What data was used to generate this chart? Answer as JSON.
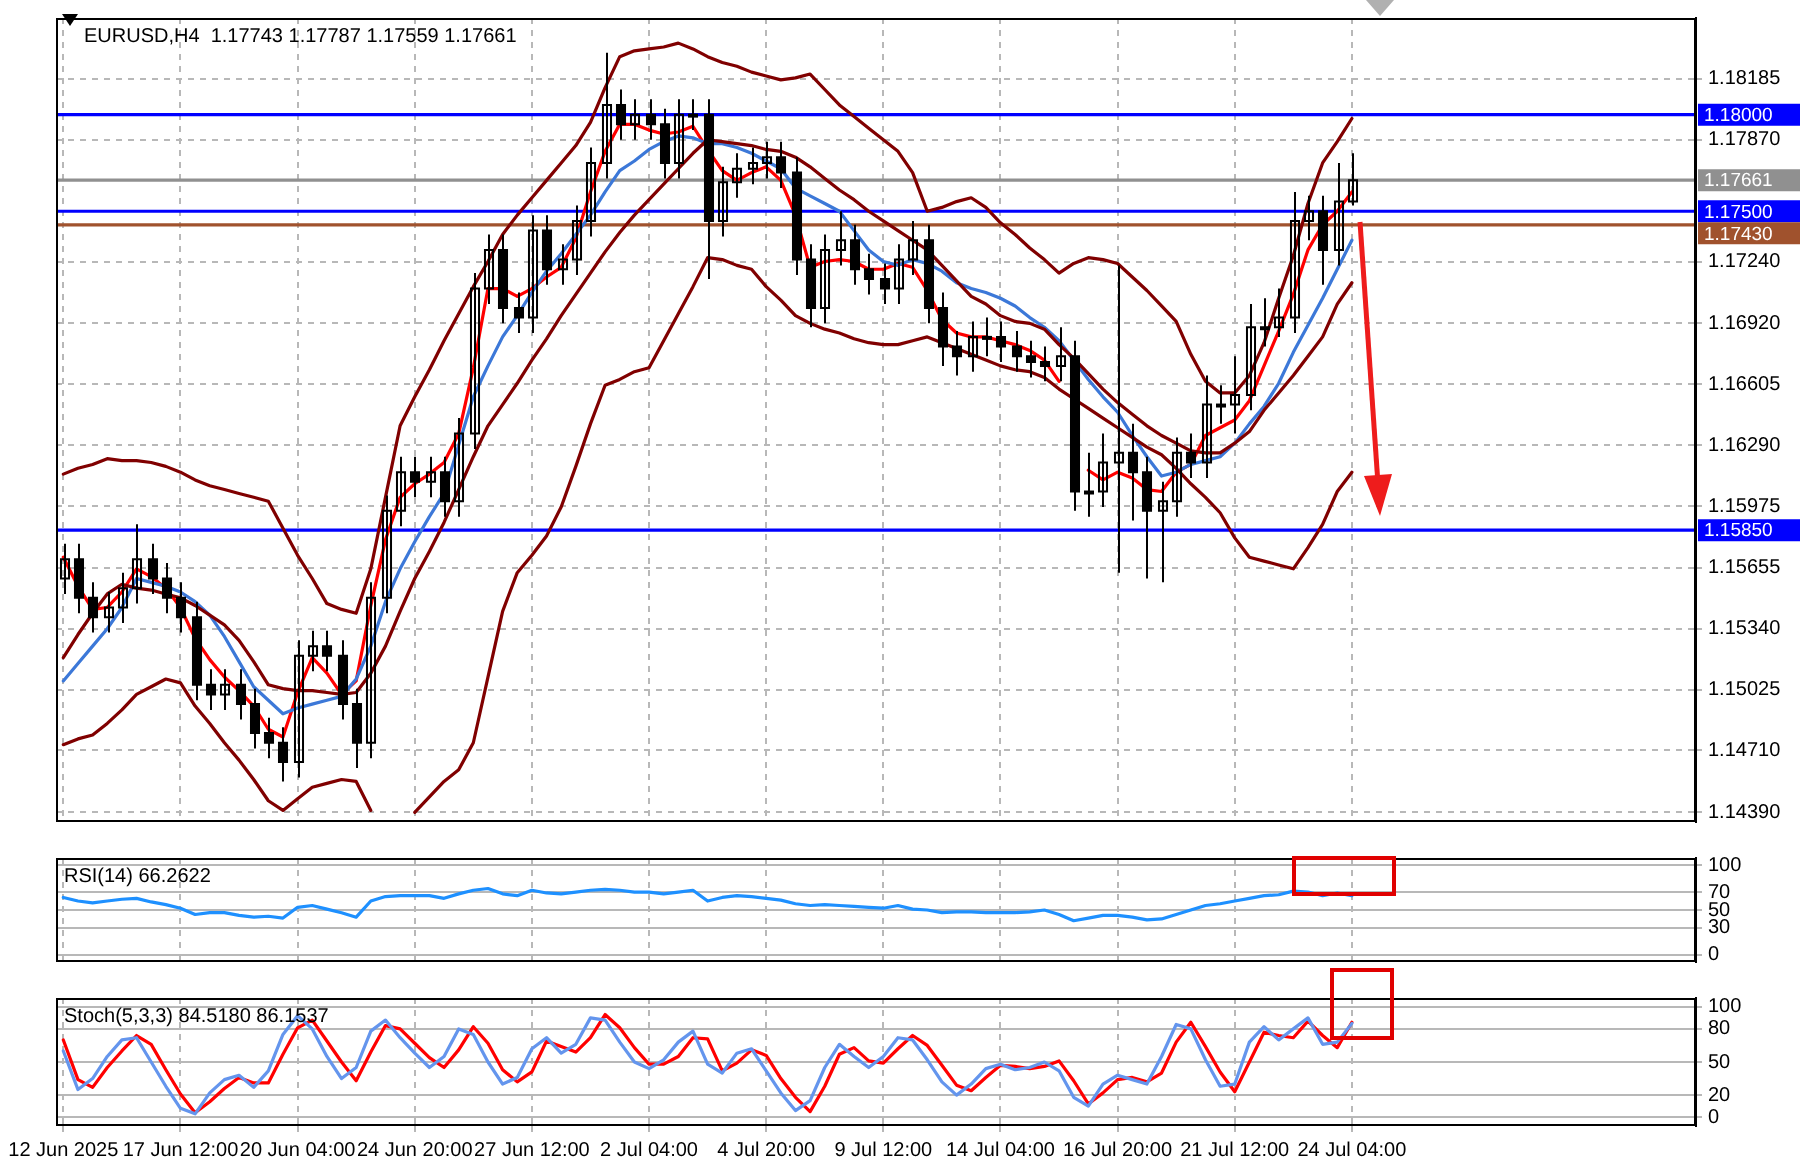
{
  "chart_data": [
    {
      "type": "candlestick",
      "title": "EURUSD,H4  1.17743 1.17787 1.17559 1.17661",
      "categories": [
        null,
        null,
        null,
        null,
        null,
        null,
        null,
        null,
        null,
        null,
        null,
        null,
        null,
        null,
        null,
        null,
        null,
        null,
        null,
        null,
        null,
        null,
        null,
        null,
        null,
        null,
        null,
        null,
        null,
        null,
        null,
        null,
        null,
        null,
        null,
        null,
        null,
        null,
        null,
        null,
        null,
        null,
        null,
        null,
        null,
        null,
        null,
        null,
        null,
        null,
        null,
        null,
        null,
        null,
        null,
        null,
        null,
        null,
        null,
        null,
        null,
        null,
        null,
        null,
        null,
        null,
        null,
        null,
        null,
        null,
        null,
        null,
        null,
        null,
        null,
        null,
        null,
        null,
        null,
        null,
        null,
        null,
        null,
        null,
        null,
        null,
        null,
        null,
        null,
        null,
        null,
        null,
        null,
        null,
        null,
        null,
        null,
        null,
        null,
        null,
        null,
        null,
        null,
        null,
        null,
        null,
        null,
        null,
        null,
        null,
        null,
        null
      ],
      "ohlc": [
        [
          1.156,
          1.1578,
          1.1552,
          1.157
        ],
        [
          1.157,
          1.1578,
          1.1542,
          1.155
        ],
        [
          1.155,
          1.1558,
          1.1532,
          1.154
        ],
        [
          1.154,
          1.1553,
          1.1532,
          1.1545
        ],
        [
          1.1545,
          1.1563,
          1.1537,
          1.1555
        ],
        [
          1.1555,
          1.1588,
          1.1547,
          1.157
        ],
        [
          1.157,
          1.1578,
          1.1552,
          1.156
        ],
        [
          1.156,
          1.1568,
          1.1542,
          1.155
        ],
        [
          1.155,
          1.1558,
          1.1532,
          1.154
        ],
        [
          1.154,
          1.1548,
          1.1497,
          1.1505
        ],
        [
          1.1505,
          1.1513,
          1.1492,
          1.15
        ],
        [
          1.15,
          1.1513,
          1.1492,
          1.1505
        ],
        [
          1.1505,
          1.1513,
          1.1487,
          1.1495
        ],
        [
          1.1495,
          1.1503,
          1.1472,
          1.148
        ],
        [
          1.148,
          1.1488,
          1.1467,
          1.1475
        ],
        [
          1.1475,
          1.1483,
          1.1455,
          1.1465
        ],
        [
          1.1465,
          1.1528,
          1.1457,
          1.152
        ],
        [
          1.152,
          1.1533,
          1.1512,
          1.1525
        ],
        [
          1.1525,
          1.1533,
          1.1512,
          1.152
        ],
        [
          1.152,
          1.1528,
          1.1487,
          1.1495
        ],
        [
          1.1495,
          1.1503,
          1.1462,
          1.1475
        ],
        [
          1.1475,
          1.1558,
          1.1467,
          1.155
        ],
        [
          1.155,
          1.1603,
          1.1542,
          1.1595
        ],
        [
          1.1595,
          1.1623,
          1.1587,
          1.1615
        ],
        [
          1.1615,
          1.1623,
          1.1602,
          1.161
        ],
        [
          1.161,
          1.1623,
          1.1602,
          1.1615
        ],
        [
          1.1615,
          1.1623,
          1.1592,
          1.16
        ],
        [
          1.16,
          1.1643,
          1.1592,
          1.1635
        ],
        [
          1.1635,
          1.1718,
          1.1627,
          1.171
        ],
        [
          1.171,
          1.1738,
          1.1702,
          1.173
        ],
        [
          1.173,
          1.1738,
          1.1692,
          1.17
        ],
        [
          1.17,
          1.1708,
          1.1687,
          1.1695
        ],
        [
          1.1695,
          1.1748,
          1.1687,
          1.174
        ],
        [
          1.174,
          1.1748,
          1.1712,
          1.172
        ],
        [
          1.172,
          1.1733,
          1.1712,
          1.1725
        ],
        [
          1.1725,
          1.1753,
          1.1717,
          1.1745
        ],
        [
          1.1745,
          1.1783,
          1.1737,
          1.1775
        ],
        [
          1.1775,
          1.1832,
          1.1767,
          1.1805
        ],
        [
          1.1805,
          1.1813,
          1.1787,
          1.1795
        ],
        [
          1.1795,
          1.1808,
          1.1787,
          1.18
        ],
        [
          1.18,
          1.1808,
          1.1787,
          1.1795
        ],
        [
          1.1795,
          1.1803,
          1.1767,
          1.1775
        ],
        [
          1.1775,
          1.1808,
          1.1767,
          1.18
        ],
        [
          1.18,
          1.1808,
          1.1792,
          1.18
        ],
        [
          1.18,
          1.1808,
          1.1715,
          1.1745
        ],
        [
          1.1745,
          1.1773,
          1.1737,
          1.1765
        ],
        [
          1.1765,
          1.178,
          1.1757,
          1.1772
        ],
        [
          1.1772,
          1.1783,
          1.1764,
          1.1775
        ],
        [
          1.1775,
          1.1786,
          1.1767,
          1.1778
        ],
        [
          1.1778,
          1.1786,
          1.1762,
          1.177
        ],
        [
          1.177,
          1.1778,
          1.1717,
          1.1725
        ],
        [
          1.1725,
          1.1733,
          1.169,
          1.17
        ],
        [
          1.17,
          1.1738,
          1.1692,
          1.173
        ],
        [
          1.173,
          1.175,
          1.1722,
          1.1735
        ],
        [
          1.1735,
          1.1743,
          1.1712,
          1.172
        ],
        [
          1.172,
          1.1728,
          1.1707,
          1.1715
        ],
        [
          1.1715,
          1.1723,
          1.1702,
          1.171
        ],
        [
          1.171,
          1.1733,
          1.1702,
          1.1725
        ],
        [
          1.1725,
          1.1745,
          1.1717,
          1.1735
        ],
        [
          1.1735,
          1.1743,
          1.1692,
          1.17
        ],
        [
          1.17,
          1.1708,
          1.167,
          1.168
        ],
        [
          1.168,
          1.1688,
          1.1665,
          1.1675
        ],
        [
          1.1675,
          1.1693,
          1.1667,
          1.1685
        ],
        [
          1.1685,
          1.1695,
          1.1675,
          1.1685
        ],
        [
          1.1685,
          1.1693,
          1.1672,
          1.168
        ],
        [
          1.168,
          1.1688,
          1.1667,
          1.1675
        ],
        [
          1.1675,
          1.1683,
          1.1664,
          1.1672
        ],
        [
          1.1672,
          1.168,
          1.1662,
          1.167
        ],
        [
          1.167,
          1.169,
          1.1662,
          1.1675
        ],
        [
          1.1675,
          1.1683,
          1.1595,
          1.1605
        ],
        [
          1.1605,
          1.1625,
          1.1592,
          1.1605
        ],
        [
          1.1605,
          1.1635,
          1.1597,
          1.162
        ],
        [
          1.162,
          1.1722,
          1.1563,
          1.1625
        ],
        [
          1.1625,
          1.164,
          1.159,
          1.1615
        ],
        [
          1.1615,
          1.1623,
          1.156,
          1.1595
        ],
        [
          1.1595,
          1.161,
          1.1558,
          1.16
        ],
        [
          1.16,
          1.1633,
          1.1592,
          1.1625
        ],
        [
          1.1625,
          1.1635,
          1.1612,
          1.162
        ],
        [
          1.162,
          1.1665,
          1.1612,
          1.165
        ],
        [
          1.165,
          1.166,
          1.164,
          1.165
        ],
        [
          1.165,
          1.1675,
          1.1635,
          1.1655
        ],
        [
          1.1655,
          1.1702,
          1.1647,
          1.169
        ],
        [
          1.169,
          1.1705,
          1.168,
          1.169
        ],
        [
          1.169,
          1.171,
          1.1685,
          1.1695
        ],
        [
          1.1695,
          1.176,
          1.1687,
          1.1745
        ],
        [
          1.1745,
          1.1758,
          1.1735,
          1.175
        ],
        [
          1.175,
          1.1758,
          1.1712,
          1.173
        ],
        [
          1.173,
          1.1775,
          1.1722,
          1.1755
        ],
        [
          1.1755,
          1.178,
          1.1753,
          1.17661
        ],
        null,
        null,
        null,
        null,
        null,
        null,
        null,
        null,
        null,
        null,
        null,
        null,
        null,
        null,
        null,
        null,
        null,
        null,
        null,
        null,
        null,
        null,
        null
      ],
      "series": [
        {
          "type": "line",
          "color": "#800000",
          "values": [
            1.1614,
            1.1617,
            1.1619,
            1.1622,
            1.1621,
            1.1621,
            1.162,
            1.1618,
            1.1615,
            1.1611,
            1.1608,
            1.1606,
            1.1604,
            1.1602,
            1.16,
            1.1586,
            1.1572,
            1.156,
            1.1547,
            1.1544,
            1.1542,
            1.1565,
            1.1602,
            1.1639,
            1.1654,
            1.1668,
            1.1683,
            1.1697,
            1.1711,
            1.1724,
            1.1738,
            1.1748,
            1.1757,
            1.1766,
            1.1775,
            1.1784,
            1.1796,
            1.1814,
            1.183,
            1.1833,
            1.1834,
            1.1835,
            1.1837,
            1.1834,
            1.183,
            1.1827,
            1.1825,
            1.1822,
            1.182,
            1.1818,
            1.1819,
            1.1821,
            1.1813,
            1.1805,
            1.1799,
            1.1793,
            1.1787,
            1.1781,
            1.177,
            1.175,
            1.1752,
            1.1755,
            1.1757,
            1.1752,
            1.1744,
            1.1738,
            1.1731,
            1.1725,
            1.1718,
            1.1723,
            1.1726,
            1.1725,
            1.1723,
            1.1716,
            1.1709,
            1.1701,
            1.1693,
            1.1676,
            1.1662,
            1.1656,
            1.1656,
            1.1665,
            1.1682,
            1.1705,
            1.1727,
            1.1754,
            1.1775,
            1.1786,
            1.1798,
            null,
            null,
            null,
            null,
            null,
            null,
            null,
            null,
            null,
            null,
            null,
            null,
            null,
            null,
            null,
            null,
            null,
            null,
            null,
            null,
            null,
            null,
            null
          ]
        },
        {
          "type": "line",
          "color": "#800000",
          "values": [
            1.1519,
            1.1531,
            1.1542,
            1.1552,
            1.1557,
            1.1555,
            1.1554,
            1.1552,
            1.155,
            1.1546,
            1.1541,
            1.1536,
            1.1528,
            1.1517,
            1.1505,
            1.1503,
            1.1502,
            1.1502,
            1.1501,
            1.15,
            1.1501,
            1.1511,
            1.1525,
            1.1543,
            1.156,
            1.1574,
            1.1589,
            1.1606,
            1.1623,
            1.1639,
            1.165,
            1.1661,
            1.1673,
            1.1684,
            1.1696,
            1.1707,
            1.1718,
            1.1729,
            1.1739,
            1.1748,
            1.1756,
            1.1764,
            1.1772,
            1.178,
            1.1787,
            1.1786,
            1.1785,
            1.1784,
            1.1782,
            1.1781,
            1.1778,
            1.1773,
            1.1767,
            1.1761,
            1.1756,
            1.175,
            1.1745,
            1.174,
            1.1735,
            1.173,
            1.1722,
            1.1714,
            1.1706,
            1.1702,
            1.1696,
            1.1693,
            1.1692,
            1.1689,
            1.1681,
            1.1674,
            1.1666,
            1.1658,
            1.1651,
            1.1645,
            1.1639,
            1.1634,
            1.163,
            1.1626,
            1.1625,
            1.1625,
            1.163,
            1.1636,
            1.1647,
            1.1656,
            1.1665,
            1.1675,
            1.1685,
            1.1702,
            1.1713,
            null,
            null,
            null,
            null,
            null,
            null,
            null,
            null,
            null,
            null,
            null,
            null,
            null,
            null,
            null,
            null,
            null,
            null,
            null,
            null,
            null,
            null,
            null
          ]
        },
        {
          "type": "line",
          "color": "#800000",
          "values": [
            1.1474,
            1.1477,
            1.1479,
            1.1485,
            1.1492,
            1.15,
            1.1504,
            1.1508,
            1.1506,
            1.1494,
            1.1485,
            1.1475,
            1.1466,
            1.1456,
            1.1445,
            1.144,
            1.1446,
            1.1452,
            1.1454,
            1.1456,
            1.1455,
            1.144,
            null,
            null,
            1.1439,
            1.1447,
            1.1455,
            1.1461,
            1.1475,
            1.1509,
            1.1543,
            1.1563,
            1.1572,
            1.1582,
            1.1597,
            1.1618,
            1.164,
            1.166,
            1.1663,
            1.1667,
            1.1669,
            1.1683,
            1.1697,
            1.1711,
            1.1726,
            1.1725,
            1.1722,
            1.172,
            1.1711,
            1.1704,
            1.1696,
            1.1692,
            1.1689,
            1.1687,
            1.1684,
            1.1682,
            1.1681,
            1.1681,
            1.1683,
            1.1685,
            1.1682,
            1.1679,
            1.1676,
            1.1673,
            1.167,
            1.1668,
            1.1667,
            1.1664,
            1.1658,
            1.1653,
            1.1648,
            1.1643,
            1.1638,
            1.1633,
            1.1628,
            1.1624,
            1.1617,
            1.1609,
            1.1602,
            1.1594,
            1.1581,
            1.1571,
            1.1569,
            1.1567,
            1.1565,
            1.1576,
            1.1588,
            1.1605,
            1.1615,
            null,
            null,
            null,
            null,
            null,
            null,
            null,
            null,
            null,
            null,
            null,
            null,
            null,
            null,
            null,
            null,
            null,
            null,
            null,
            null,
            null,
            null,
            null
          ]
        },
        {
          "type": "line",
          "color": "#3c78d8",
          "values": [
            1.1507,
            1.1516,
            1.1525,
            1.1534,
            1.1545,
            1.156,
            1.1558,
            1.1556,
            1.1553,
            1.1548,
            1.1541,
            1.153,
            1.1517,
            1.1504,
            1.1497,
            1.149,
            1.1493,
            1.1495,
            1.1497,
            1.1499,
            1.1508,
            1.1525,
            1.1548,
            1.1565,
            1.1579,
            1.1592,
            1.1604,
            1.1629,
            1.1654,
            1.167,
            1.1685,
            1.1696,
            1.1708,
            1.1719,
            1.1728,
            1.1738,
            1.1748,
            1.176,
            1.1771,
            1.1776,
            1.1782,
            1.1786,
            1.1789,
            1.1788,
            1.1785,
            1.1785,
            1.1783,
            1.178,
            1.1776,
            1.1772,
            1.1762,
            1.1758,
            1.1754,
            1.175,
            1.174,
            1.173,
            1.1724,
            1.1722,
            1.1725,
            1.1723,
            1.1719,
            1.1713,
            1.171,
            1.1708,
            1.1705,
            1.1701,
            1.1695,
            1.169,
            1.1683,
            1.1673,
            1.1663,
            1.1654,
            1.1646,
            1.1634,
            1.1623,
            1.1613,
            1.1615,
            1.1619,
            1.1621,
            1.1623,
            1.163,
            1.164,
            1.1649,
            1.1661,
            1.1677,
            1.1691,
            1.1705,
            1.172,
            1.1735,
            null,
            null,
            null,
            null,
            null,
            null,
            null,
            null,
            null,
            null,
            null,
            null,
            null,
            null,
            null,
            null,
            null,
            null,
            null,
            null,
            null,
            null,
            null
          ]
        },
        {
          "type": "line",
          "color": "#ff0000",
          "values": [
            1.1571,
            1.1556,
            1.1544,
            1.1545,
            1.1553,
            1.1565,
            1.1561,
            1.1555,
            1.1545,
            1.1529,
            1.1518,
            1.1509,
            1.1502,
            1.1494,
            1.1482,
            1.1478,
            1.1501,
            1.1519,
            1.1511,
            1.15,
            1.1507,
            1.1546,
            1.158,
            1.1602,
            1.1609,
            1.1614,
            1.162,
            1.1635,
            1.1669,
            1.171,
            1.171,
            1.1706,
            1.171,
            1.1716,
            1.1721,
            1.1736,
            1.176,
            1.1781,
            1.1795,
            1.1795,
            1.1792,
            1.179,
            1.1791,
            1.1794,
            1.1782,
            1.1771,
            1.1766,
            1.177,
            1.1773,
            1.1766,
            1.1748,
            1.1721,
            1.1724,
            1.1725,
            1.1724,
            1.172,
            1.172,
            1.1723,
            1.1721,
            1.1709,
            1.1694,
            1.1687,
            1.1685,
            1.1685,
            1.1683,
            1.1681,
            1.1678,
            1.1673,
            1.1662,
            null,
            1.1616,
            1.1611,
            1.1615,
            1.1612,
            1.1606,
            1.1605,
            1.1615,
            1.1619,
            1.1634,
            1.1638,
            1.1642,
            1.1652,
            1.167,
            1.1688,
            1.1707,
            1.173,
            1.1743,
            1.175,
            1.176,
            null,
            null,
            null,
            null,
            null,
            null,
            null,
            null,
            null,
            null,
            null,
            null,
            null,
            null,
            null,
            null,
            null,
            null,
            null,
            null,
            null,
            null,
            null
          ]
        }
      ],
      "ylim": [
        1.1434,
        1.185
      ],
      "yticks": [
        1.18185,
        {
          "value": 1.1787,
          "label": "1.17870"
        },
        {
          "value": 1.1724,
          "label": "1.17240"
        },
        {
          "value": 1.1692,
          "label": "1.16920"
        },
        1.16605,
        {
          "value": 1.1629,
          "label": "1.16290"
        },
        1.15975,
        1.15655,
        {
          "value": 1.1534,
          "label": "1.15340"
        },
        1.15025,
        {
          "value": 1.1471,
          "label": "1.14710"
        },
        {
          "value": 1.1439,
          "label": "1.14390"
        }
      ],
      "ref_lines": [
        {
          "axis": "y",
          "value": 1.18,
          "label": "1.18000",
          "color": "#0000ff"
        },
        {
          "axis": "y",
          "value": 1.17661,
          "label": "1.17661",
          "color": "#909090"
        },
        {
          "axis": "y",
          "value": 1.175,
          "label": "1.17500",
          "color": "#0000ff"
        },
        {
          "axis": "y",
          "value": 1.1743,
          "label": "1.17430",
          "color": "#a0522d"
        },
        {
          "axis": "y",
          "value": 1.1585,
          "label": "1.15850",
          "color": "#0000ff"
        }
      ],
      "grid": true,
      "tick_labels": "y"
    },
    {
      "type": "line",
      "title": "RSI(14) 66.2622",
      "categories": [
        null,
        null,
        null,
        null,
        null,
        null,
        null,
        null,
        null,
        null,
        null,
        null,
        null,
        null,
        null,
        null,
        null,
        null,
        null,
        null,
        null,
        null,
        null,
        null,
        null,
        null,
        null,
        null,
        null,
        null,
        null,
        null,
        null,
        null,
        null,
        null,
        null,
        null,
        null,
        null,
        null,
        null,
        null,
        null,
        null,
        null,
        null,
        null,
        null,
        null,
        null,
        null,
        null,
        null,
        null,
        null,
        null,
        null,
        null,
        null,
        null,
        null,
        null,
        null,
        null,
        null,
        null,
        null,
        null,
        null,
        null,
        null,
        null,
        null,
        null,
        null,
        null,
        null,
        null,
        null,
        null,
        null,
        null,
        null,
        null,
        null,
        null,
        null,
        null,
        null,
        null,
        null,
        null,
        null,
        null,
        null,
        null,
        null,
        null,
        null,
        null,
        null,
        null,
        null,
        null,
        null,
        null,
        null,
        null,
        null,
        null,
        null
      ],
      "color": "#1e90ff",
      "values": [
        64,
        60,
        58,
        60,
        62,
        63,
        59,
        56,
        52,
        45,
        47,
        47,
        44,
        42,
        43,
        41,
        53,
        55,
        51,
        47,
        42,
        60,
        65,
        66,
        66,
        66,
        63,
        68,
        72,
        74,
        68,
        66,
        72,
        69,
        68,
        70,
        72,
        73,
        72,
        70,
        70,
        68,
        70,
        72,
        60,
        64,
        66,
        65,
        63,
        61,
        57,
        55,
        56,
        55,
        54,
        53,
        52,
        55,
        51,
        50,
        47,
        48,
        48,
        47,
        47,
        47,
        48,
        50,
        45,
        38,
        41,
        44,
        44,
        42,
        39,
        40,
        45,
        50,
        55,
        57,
        60,
        63,
        66,
        67,
        71,
        70,
        66,
        69,
        66,
        null,
        null,
        null,
        null,
        null,
        null,
        null,
        null,
        null,
        null,
        null,
        null,
        null,
        null,
        null,
        null,
        null,
        null,
        null,
        null,
        null,
        null,
        null
      ],
      "ylim": [
        -8,
        108
      ],
      "yticks": [
        0,
        30,
        50,
        70,
        100
      ],
      "grid": true,
      "tick_labels": "y"
    },
    {
      "type": "line",
      "title": "Stoch(5,3,3) 84.5180 86.1537",
      "categories": [
        "12 Jun 2025",
        null,
        null,
        null,
        null,
        null,
        null,
        null,
        "17 Jun 12:00",
        null,
        null,
        null,
        null,
        null,
        null,
        null,
        "20 Jun 04:00",
        null,
        null,
        null,
        null,
        null,
        null,
        null,
        "24 Jun 20:00",
        null,
        null,
        null,
        null,
        null,
        null,
        null,
        "27 Jun 12:00",
        null,
        null,
        null,
        null,
        null,
        null,
        null,
        "2 Jul 04:00",
        null,
        null,
        null,
        null,
        null,
        null,
        null,
        "4 Jul 20:00",
        null,
        null,
        null,
        null,
        null,
        null,
        null,
        "9 Jul 12:00",
        null,
        null,
        null,
        null,
        null,
        null,
        null,
        "14 Jul 04:00",
        null,
        null,
        null,
        null,
        null,
        null,
        null,
        "16 Jul 20:00",
        null,
        null,
        null,
        null,
        null,
        null,
        null,
        "21 Jul 12:00",
        null,
        null,
        null,
        null,
        null,
        null,
        null,
        "24 Jul 04:00",
        null,
        null,
        null,
        null,
        null,
        null,
        null,
        null,
        null,
        null,
        null,
        null,
        null,
        null,
        null,
        null,
        null,
        null,
        null,
        null,
        null,
        null,
        null
      ],
      "series": [
        {
          "color": "#6495ed",
          "values": [
            60,
            25,
            35,
            55,
            70,
            72,
            50,
            28,
            8,
            3,
            22,
            34,
            38,
            27,
            42,
            75,
            92,
            80,
            55,
            35,
            45,
            78,
            88,
            72,
            58,
            45,
            55,
            80,
            75,
            50,
            30,
            36,
            62,
            72,
            58,
            66,
            90,
            88,
            68,
            50,
            44,
            52,
            68,
            78,
            48,
            40,
            58,
            62,
            42,
            22,
            6,
            15,
            45,
            66,
            55,
            45,
            55,
            72,
            70,
            52,
            32,
            20,
            30,
            44,
            48,
            43,
            45,
            50,
            42,
            18,
            10,
            30,
            38,
            34,
            30,
            55,
            84,
            80,
            52,
            28,
            30,
            68,
            82,
            70,
            80,
            90,
            66,
            68,
            85,
            null,
            null,
            null,
            null,
            null,
            null,
            null,
            null,
            null,
            null,
            null,
            null,
            null,
            null,
            null,
            null,
            null,
            null,
            null,
            null,
            null,
            null,
            null
          ]
        },
        {
          "color": "#ff0000",
          "values": [
            70,
            34,
            27,
            45,
            60,
            74,
            66,
            43,
            21,
            4,
            14,
            26,
            36,
            31,
            31,
            57,
            81,
            88,
            69,
            50,
            33,
            59,
            83,
            80,
            67,
            54,
            45,
            61,
            82,
            67,
            43,
            32,
            41,
            69,
            64,
            59,
            72,
            93,
            81,
            63,
            48,
            48,
            55,
            72,
            71,
            42,
            49,
            61,
            56,
            35,
            18,
            5,
            28,
            57,
            63,
            51,
            49,
            62,
            74,
            65,
            47,
            29,
            24,
            36,
            47,
            46,
            44,
            46,
            51,
            33,
            12,
            22,
            34,
            36,
            32,
            40,
            68,
            86,
            64,
            41,
            23,
            50,
            77,
            74,
            72,
            87,
            74,
            63,
            86,
            null,
            null,
            null,
            null,
            null,
            null,
            null,
            null,
            null,
            null,
            null,
            null,
            null,
            null,
            null,
            null,
            null,
            null,
            null,
            null,
            null,
            null,
            null
          ]
        }
      ],
      "ylim": [
        -8,
        108
      ],
      "yticks": [
        0,
        20,
        50,
        80,
        100
      ],
      "grid": true
    }
  ]
}
